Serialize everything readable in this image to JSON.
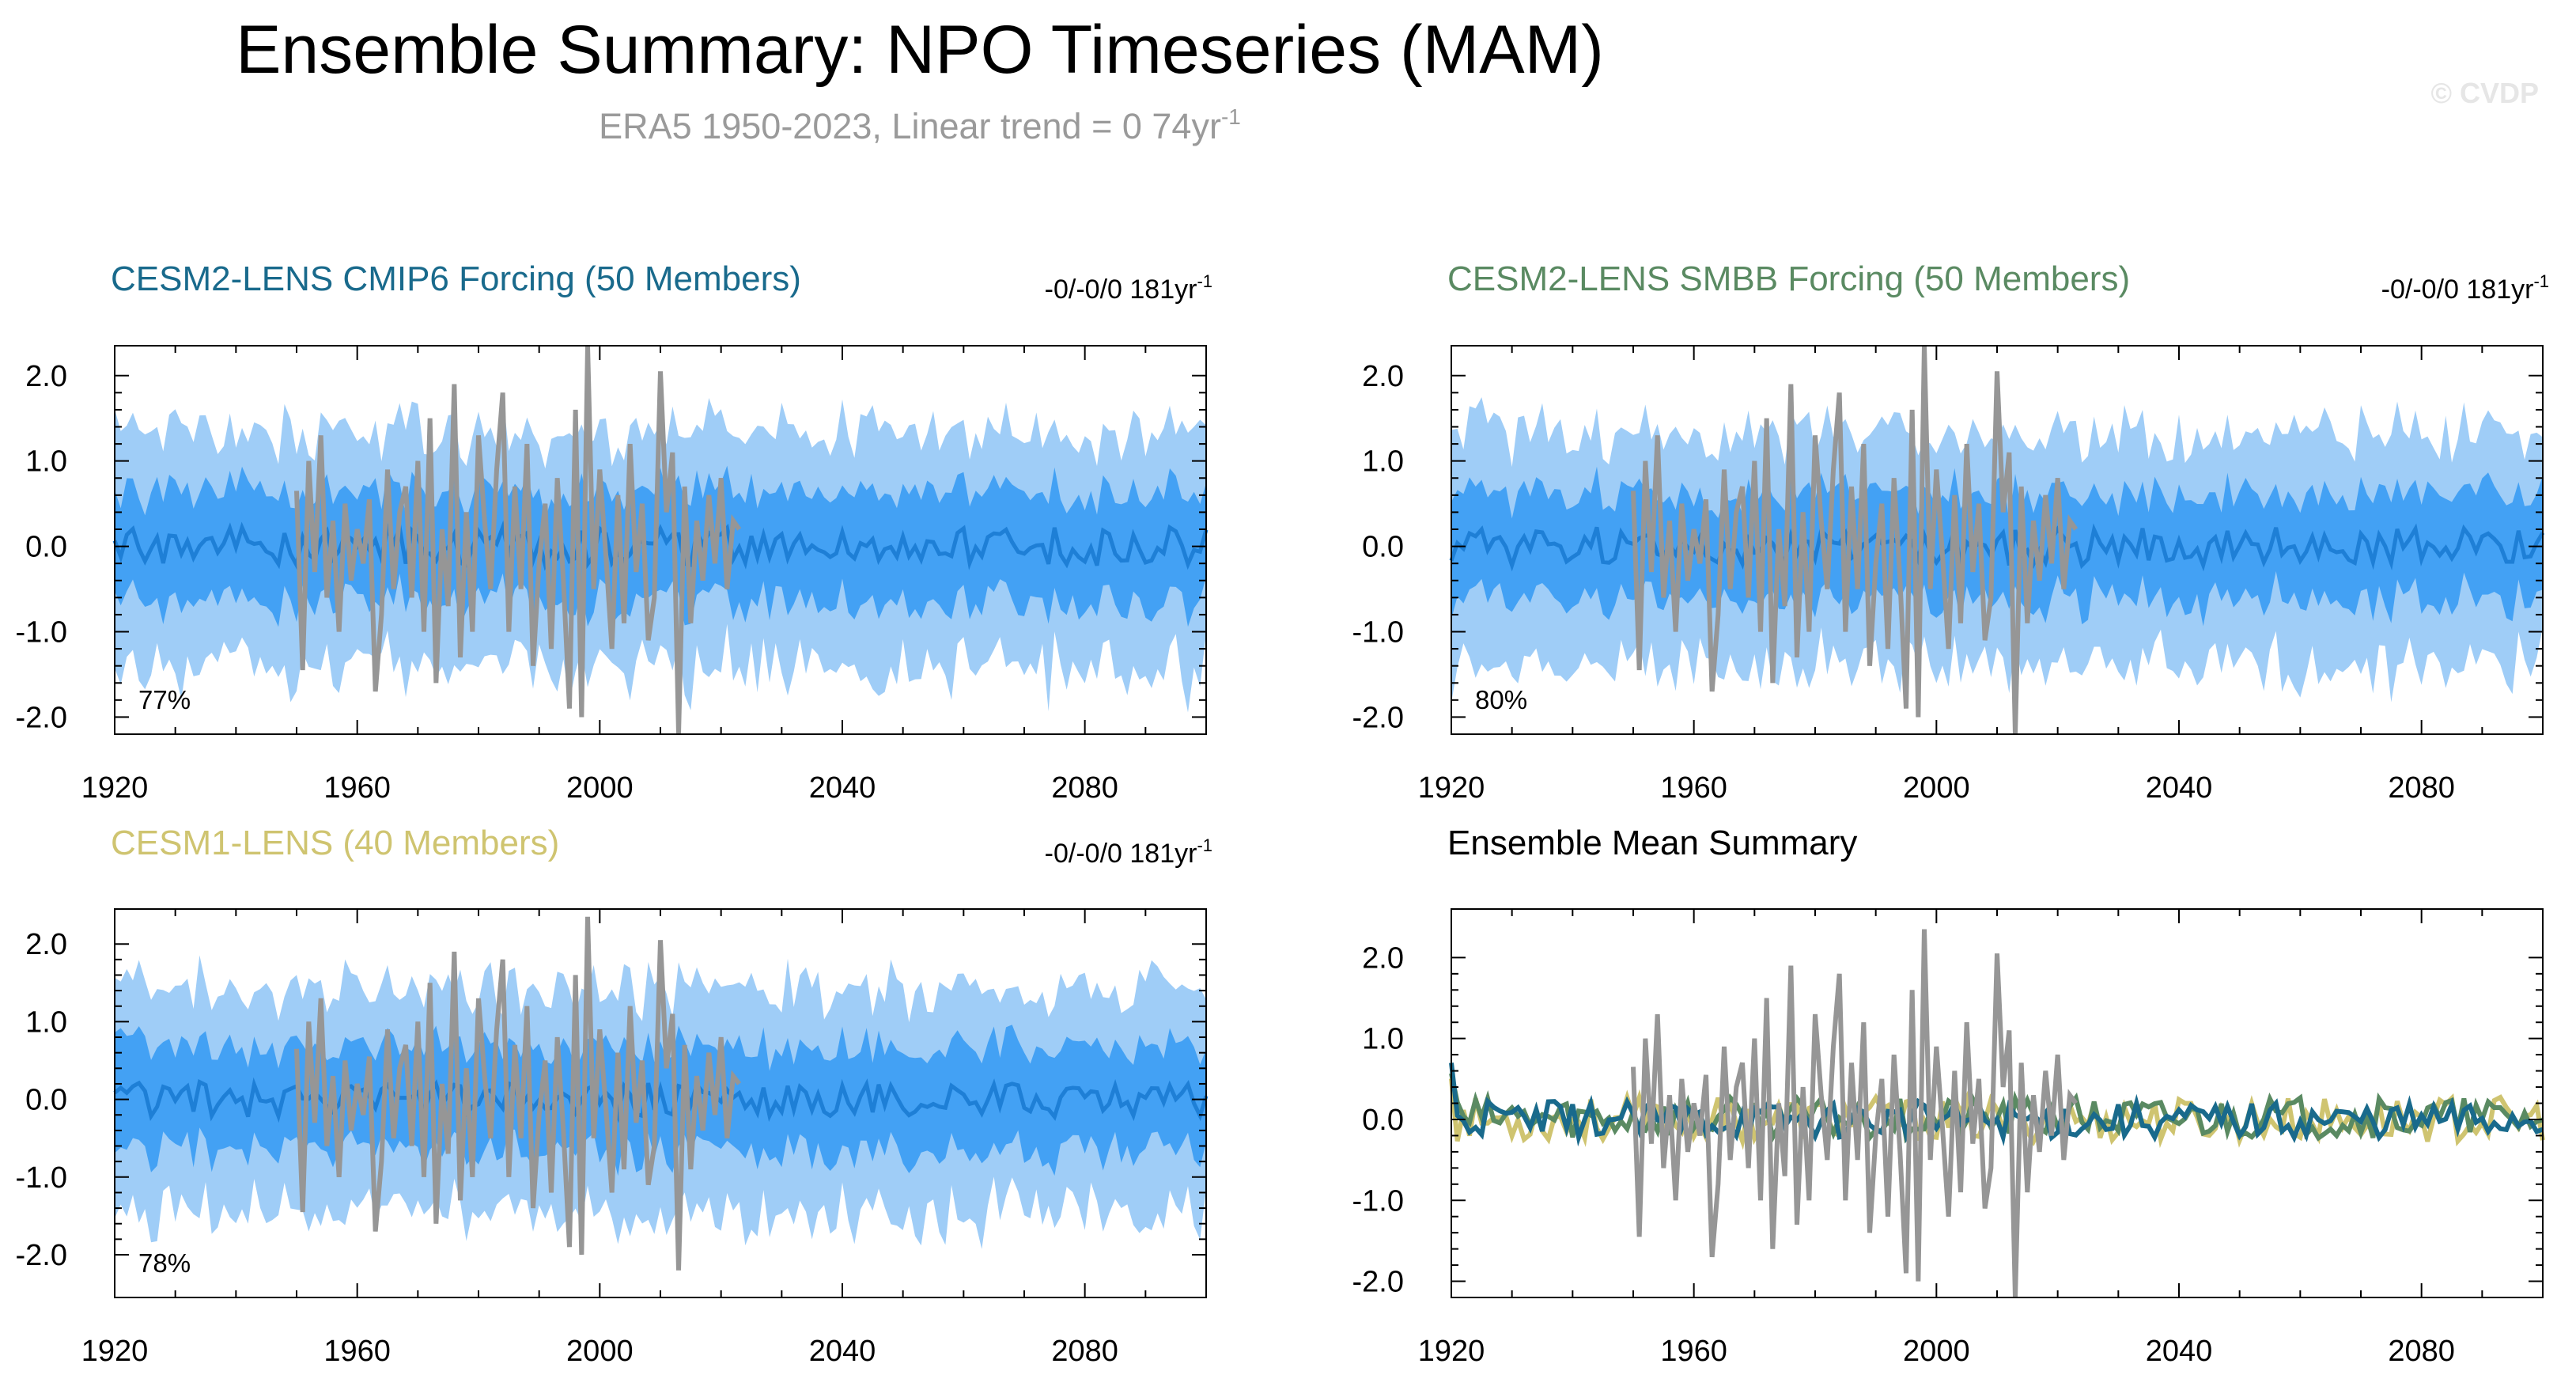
{
  "title": "Ensemble Summary: NPO Timeseries (MAM)",
  "subtitle": "ERA5 1950-2023, Linear trend = 0 74yr",
  "subtitle_sup": "-1",
  "watermark": "© CVDP",
  "colors": {
    "outer_band": "#9fcdf7",
    "inner_band": "#43a1f4",
    "ens_mean": "#1e7fd6",
    "obs": "#969696",
    "cesm2_cmip6": "#196a8c",
    "cesm2_smbb": "#5a8a62",
    "cesm1": "#cfc470",
    "axis": "#000000"
  },
  "chart_data": [
    {
      "id": "cesm2_cmip6",
      "type": "area",
      "title": "CESM2-LENS CMIP6 Forcing (50 Members)",
      "title_color": "#196a8c",
      "trend_label": "-0/-0/0 181yr",
      "trend_sup": "-1",
      "pct_label": "77%",
      "xlim": [
        1920,
        2100
      ],
      "ylim": [
        -2.2,
        2.35
      ],
      "xticks": [
        "1920",
        "1960",
        "2000",
        "2040",
        "2080"
      ],
      "yticks": [
        "2.0",
        "1.0",
        "0.0",
        "-1.0",
        "-2.0"
      ],
      "seed": 11,
      "outer_amp": 1.32,
      "inner_amp": 0.62,
      "series": [
        {
          "role": "ensemble_range",
          "x_start": 1920,
          "x_end": 2100
        },
        {
          "role": "ensemble_mean",
          "x_start": 1920,
          "x_end": 2100
        },
        {
          "role": "observations",
          "x_start": 1950,
          "x_end": 2023
        }
      ]
    },
    {
      "id": "cesm2_smbb",
      "type": "area",
      "title": "CESM2-LENS SMBB Forcing (50 Members)",
      "title_color": "#5a8a62",
      "trend_label": "-0/-0/0 181yr",
      "trend_sup": "-1",
      "pct_label": "80%",
      "xlim": [
        1920,
        2100
      ],
      "ylim": [
        -2.2,
        2.35
      ],
      "xticks": [
        "1920",
        "1960",
        "2000",
        "2040",
        "2080"
      ],
      "yticks": [
        "2.0",
        "1.0",
        "0.0",
        "-1.0",
        "-2.0"
      ],
      "seed": 23,
      "outer_amp": 1.3,
      "inner_amp": 0.6,
      "series": [
        {
          "role": "ensemble_range",
          "x_start": 1920,
          "x_end": 2100
        },
        {
          "role": "ensemble_mean",
          "x_start": 1920,
          "x_end": 2100
        },
        {
          "role": "observations",
          "x_start": 1950,
          "x_end": 2023
        }
      ]
    },
    {
      "id": "cesm1",
      "type": "area",
      "title": "CESM1-LENS (40 Members)",
      "title_color": "#cfc470",
      "trend_label": "-0/-0/0 181yr",
      "trend_sup": "-1",
      "pct_label": "78%",
      "xlim": [
        1920,
        2100
      ],
      "ylim": [
        -2.55,
        2.45
      ],
      "xticks": [
        "1920",
        "1960",
        "2000",
        "2040",
        "2080"
      ],
      "yticks": [
        "2.0",
        "1.0",
        "0.0",
        "-1.0",
        "-2.0"
      ],
      "seed": 37,
      "outer_amp": 1.38,
      "inner_amp": 0.65,
      "series": [
        {
          "role": "ensemble_range",
          "x_start": 1920,
          "x_end": 2100
        },
        {
          "role": "ensemble_mean",
          "x_start": 1920,
          "x_end": 2100
        },
        {
          "role": "observations",
          "x_start": 1950,
          "x_end": 2023
        }
      ]
    },
    {
      "id": "ens_mean_summary",
      "type": "line",
      "title": "Ensemble Mean Summary",
      "title_color": "#000000",
      "xlim": [
        1920,
        2100
      ],
      "ylim": [
        -2.2,
        2.6
      ],
      "xticks": [
        "1920",
        "1960",
        "2000",
        "2040",
        "2080"
      ],
      "yticks": [
        "2.0",
        "1.0",
        "0.0",
        "-1.0",
        "-2.0"
      ],
      "seed": 53,
      "series": [
        {
          "role": "observations",
          "color": "#969696",
          "x_start": 1950,
          "x_end": 2023
        },
        {
          "role": "cesm1_mean",
          "color": "#cfc470",
          "x_start": 1920,
          "x_end": 2100
        },
        {
          "role": "smbb_mean",
          "color": "#5a8a62",
          "x_start": 1920,
          "x_end": 2100
        },
        {
          "role": "cmip6_mean",
          "color": "#196a8c",
          "x_start": 1920,
          "x_end": 2100
        }
      ]
    }
  ],
  "observations_values": {
    "x_start": 1950,
    "values": [
      0.65,
      -1.45,
      1.0,
      -0.3,
      1.3,
      -0.6,
      0.3,
      -1.0,
      0.5,
      -0.4,
      0.2,
      -0.2,
      0.55,
      -1.7,
      -0.8,
      0.9,
      -0.5,
      0.4,
      0.7,
      -0.6,
      1.0,
      -1.0,
      1.5,
      -1.6,
      0.2,
      -0.7,
      1.9,
      -1.3,
      0.4,
      -1.0,
      1.3,
      0.3,
      -0.5,
      0.9,
      1.8,
      -1.0,
      0.7,
      -0.5,
      1.2,
      -1.4,
      -0.2,
      0.5,
      -1.2,
      0.8,
      -0.4,
      -1.9,
      1.6,
      -2.0,
      2.35,
      -0.5,
      0.9,
      -0.1,
      -1.2,
      0.6,
      -0.9,
      1.2,
      -0.3,
      0.5,
      -1.1,
      -0.6,
      2.05,
      0.4,
      1.1,
      -2.2,
      0.7,
      -0.9,
      0.3,
      -0.4,
      0.6,
      -0.2,
      0.8,
      -0.5,
      0.3,
      0.2
    ]
  }
}
